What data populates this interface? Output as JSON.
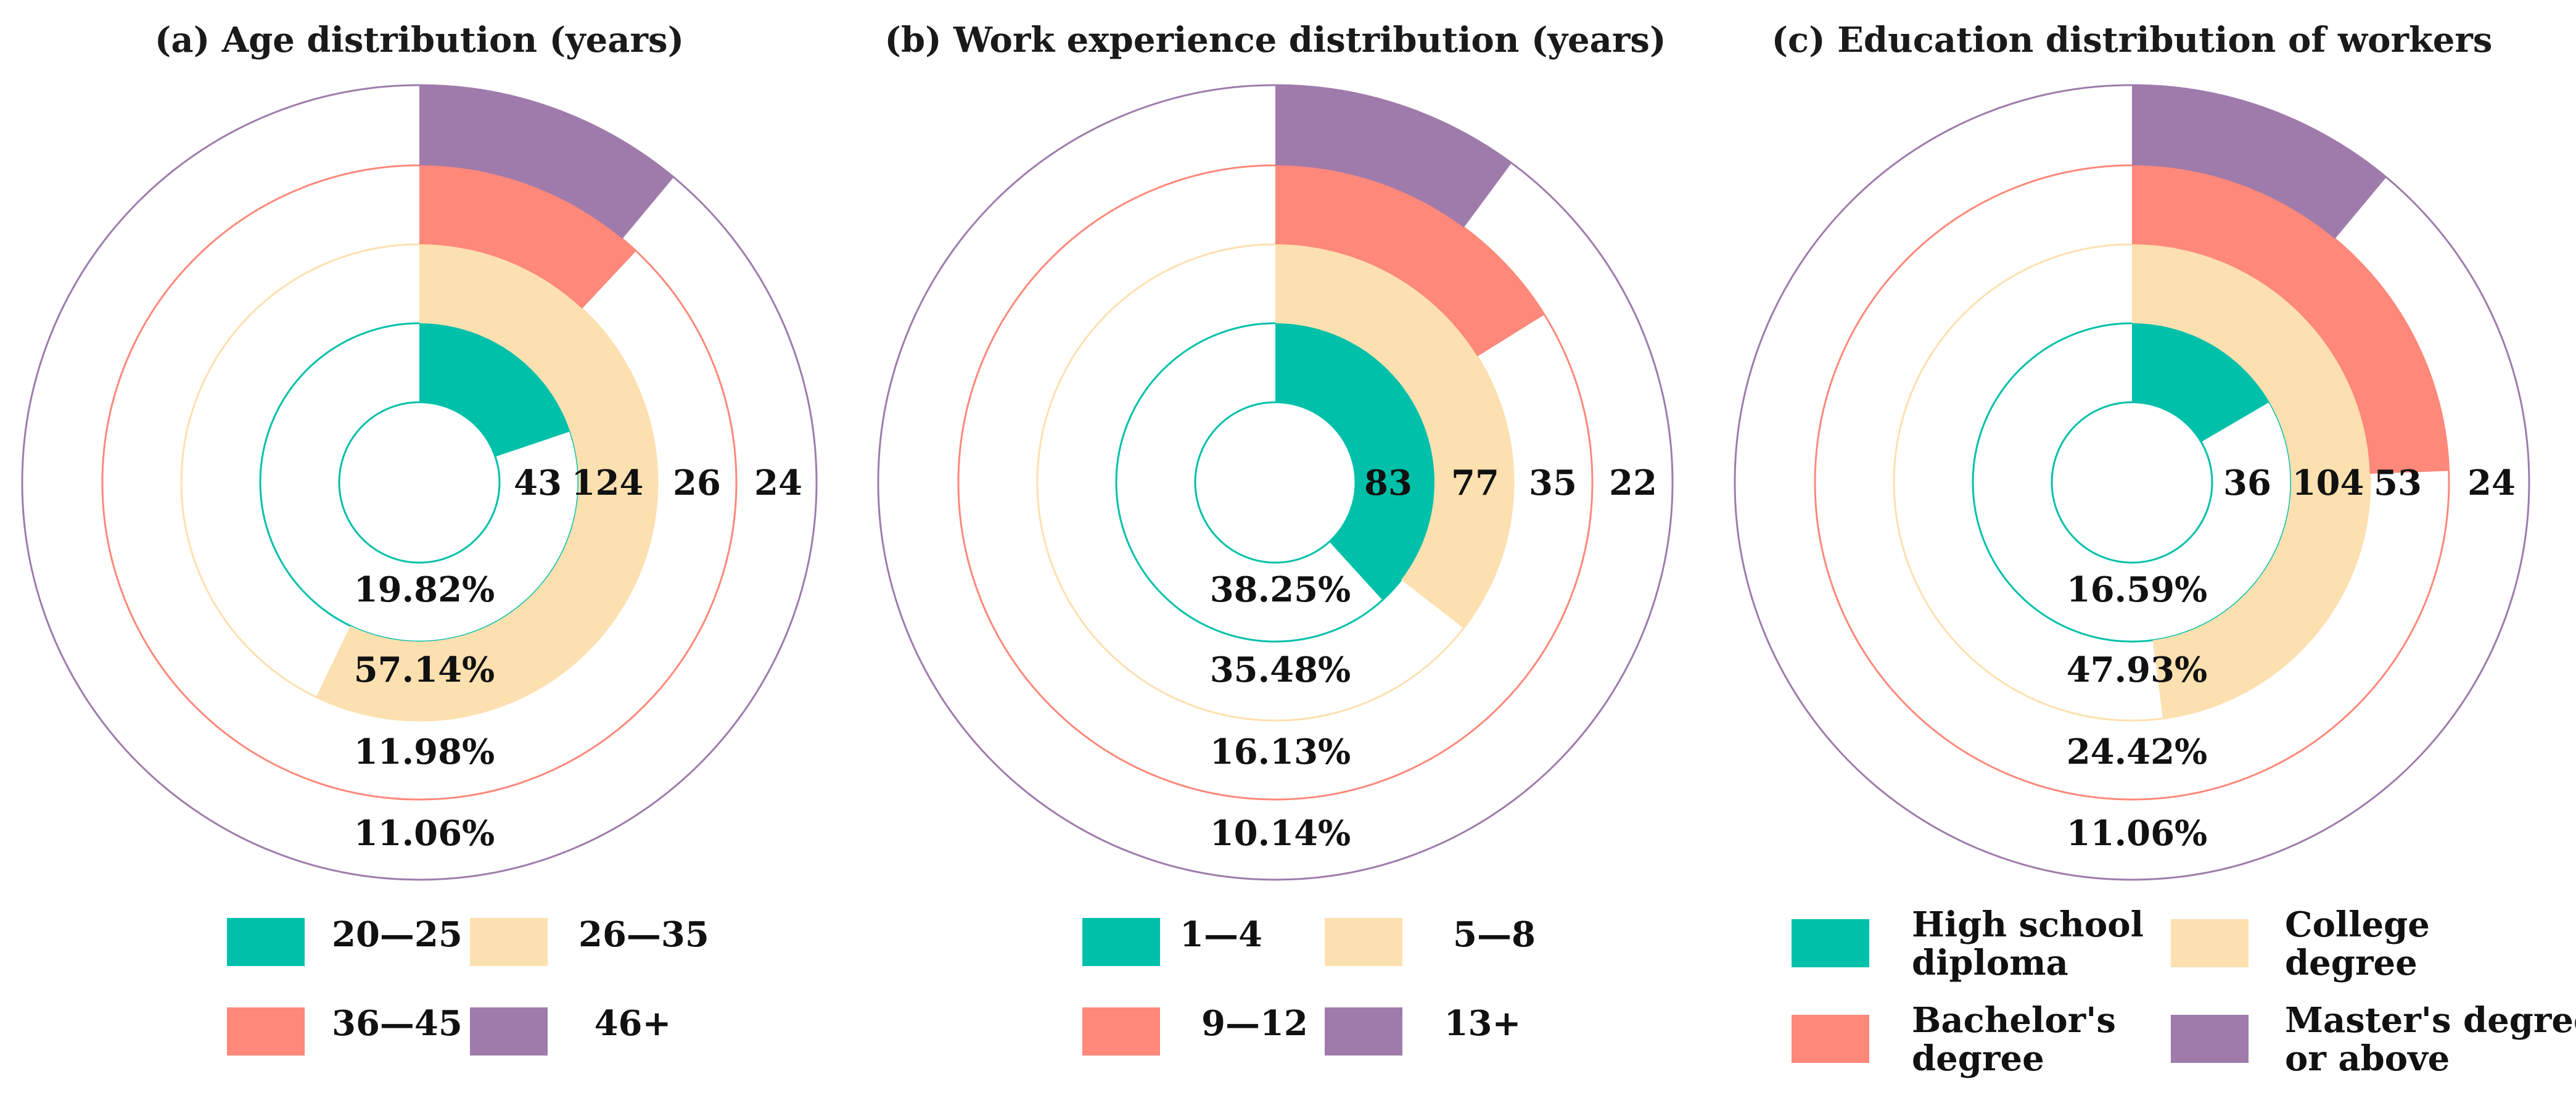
{
  "colors": {
    "c1": "#00c0aa",
    "c2": "#fde0b0",
    "c3": "#fe887a",
    "c4": "#9f7bab"
  },
  "chart_data": [
    {
      "type": "radial-bar",
      "title": "(a) Age distribution (years)",
      "categories": [
        "20—25",
        "26—35",
        "36—45",
        "46+"
      ],
      "values": [
        43,
        124,
        26,
        24
      ],
      "percentages": [
        "19.82%",
        "57.14%",
        "11.98%",
        "11.06%"
      ],
      "legend": [
        "20—25",
        "26—35",
        "36—45",
        "46+"
      ]
    },
    {
      "type": "radial-bar",
      "title": "(b) Work experience distribution (years)",
      "categories": [
        "1—4",
        "5—8",
        "9—12",
        "13+"
      ],
      "values": [
        83,
        77,
        35,
        22
      ],
      "percentages": [
        "38.25%",
        "35.48%",
        "16.13%",
        "10.14%"
      ],
      "legend": [
        "1—4",
        "5—8",
        "9—12",
        "13+"
      ]
    },
    {
      "type": "radial-bar",
      "title": "(c) Education distribution of workers",
      "categories": [
        "High school diploma",
        "College degree",
        "Bachelor's degree",
        "Master's degree or above"
      ],
      "values": [
        36,
        104,
        53,
        24
      ],
      "percentages": [
        "16.59%",
        "47.93%",
        "24.42%",
        "11.06%"
      ],
      "legend": [
        [
          "High school",
          "diploma"
        ],
        [
          "College",
          "degree"
        ],
        [
          "Bachelor's",
          "degree"
        ],
        [
          "Master's degree",
          "or above"
        ]
      ]
    }
  ]
}
